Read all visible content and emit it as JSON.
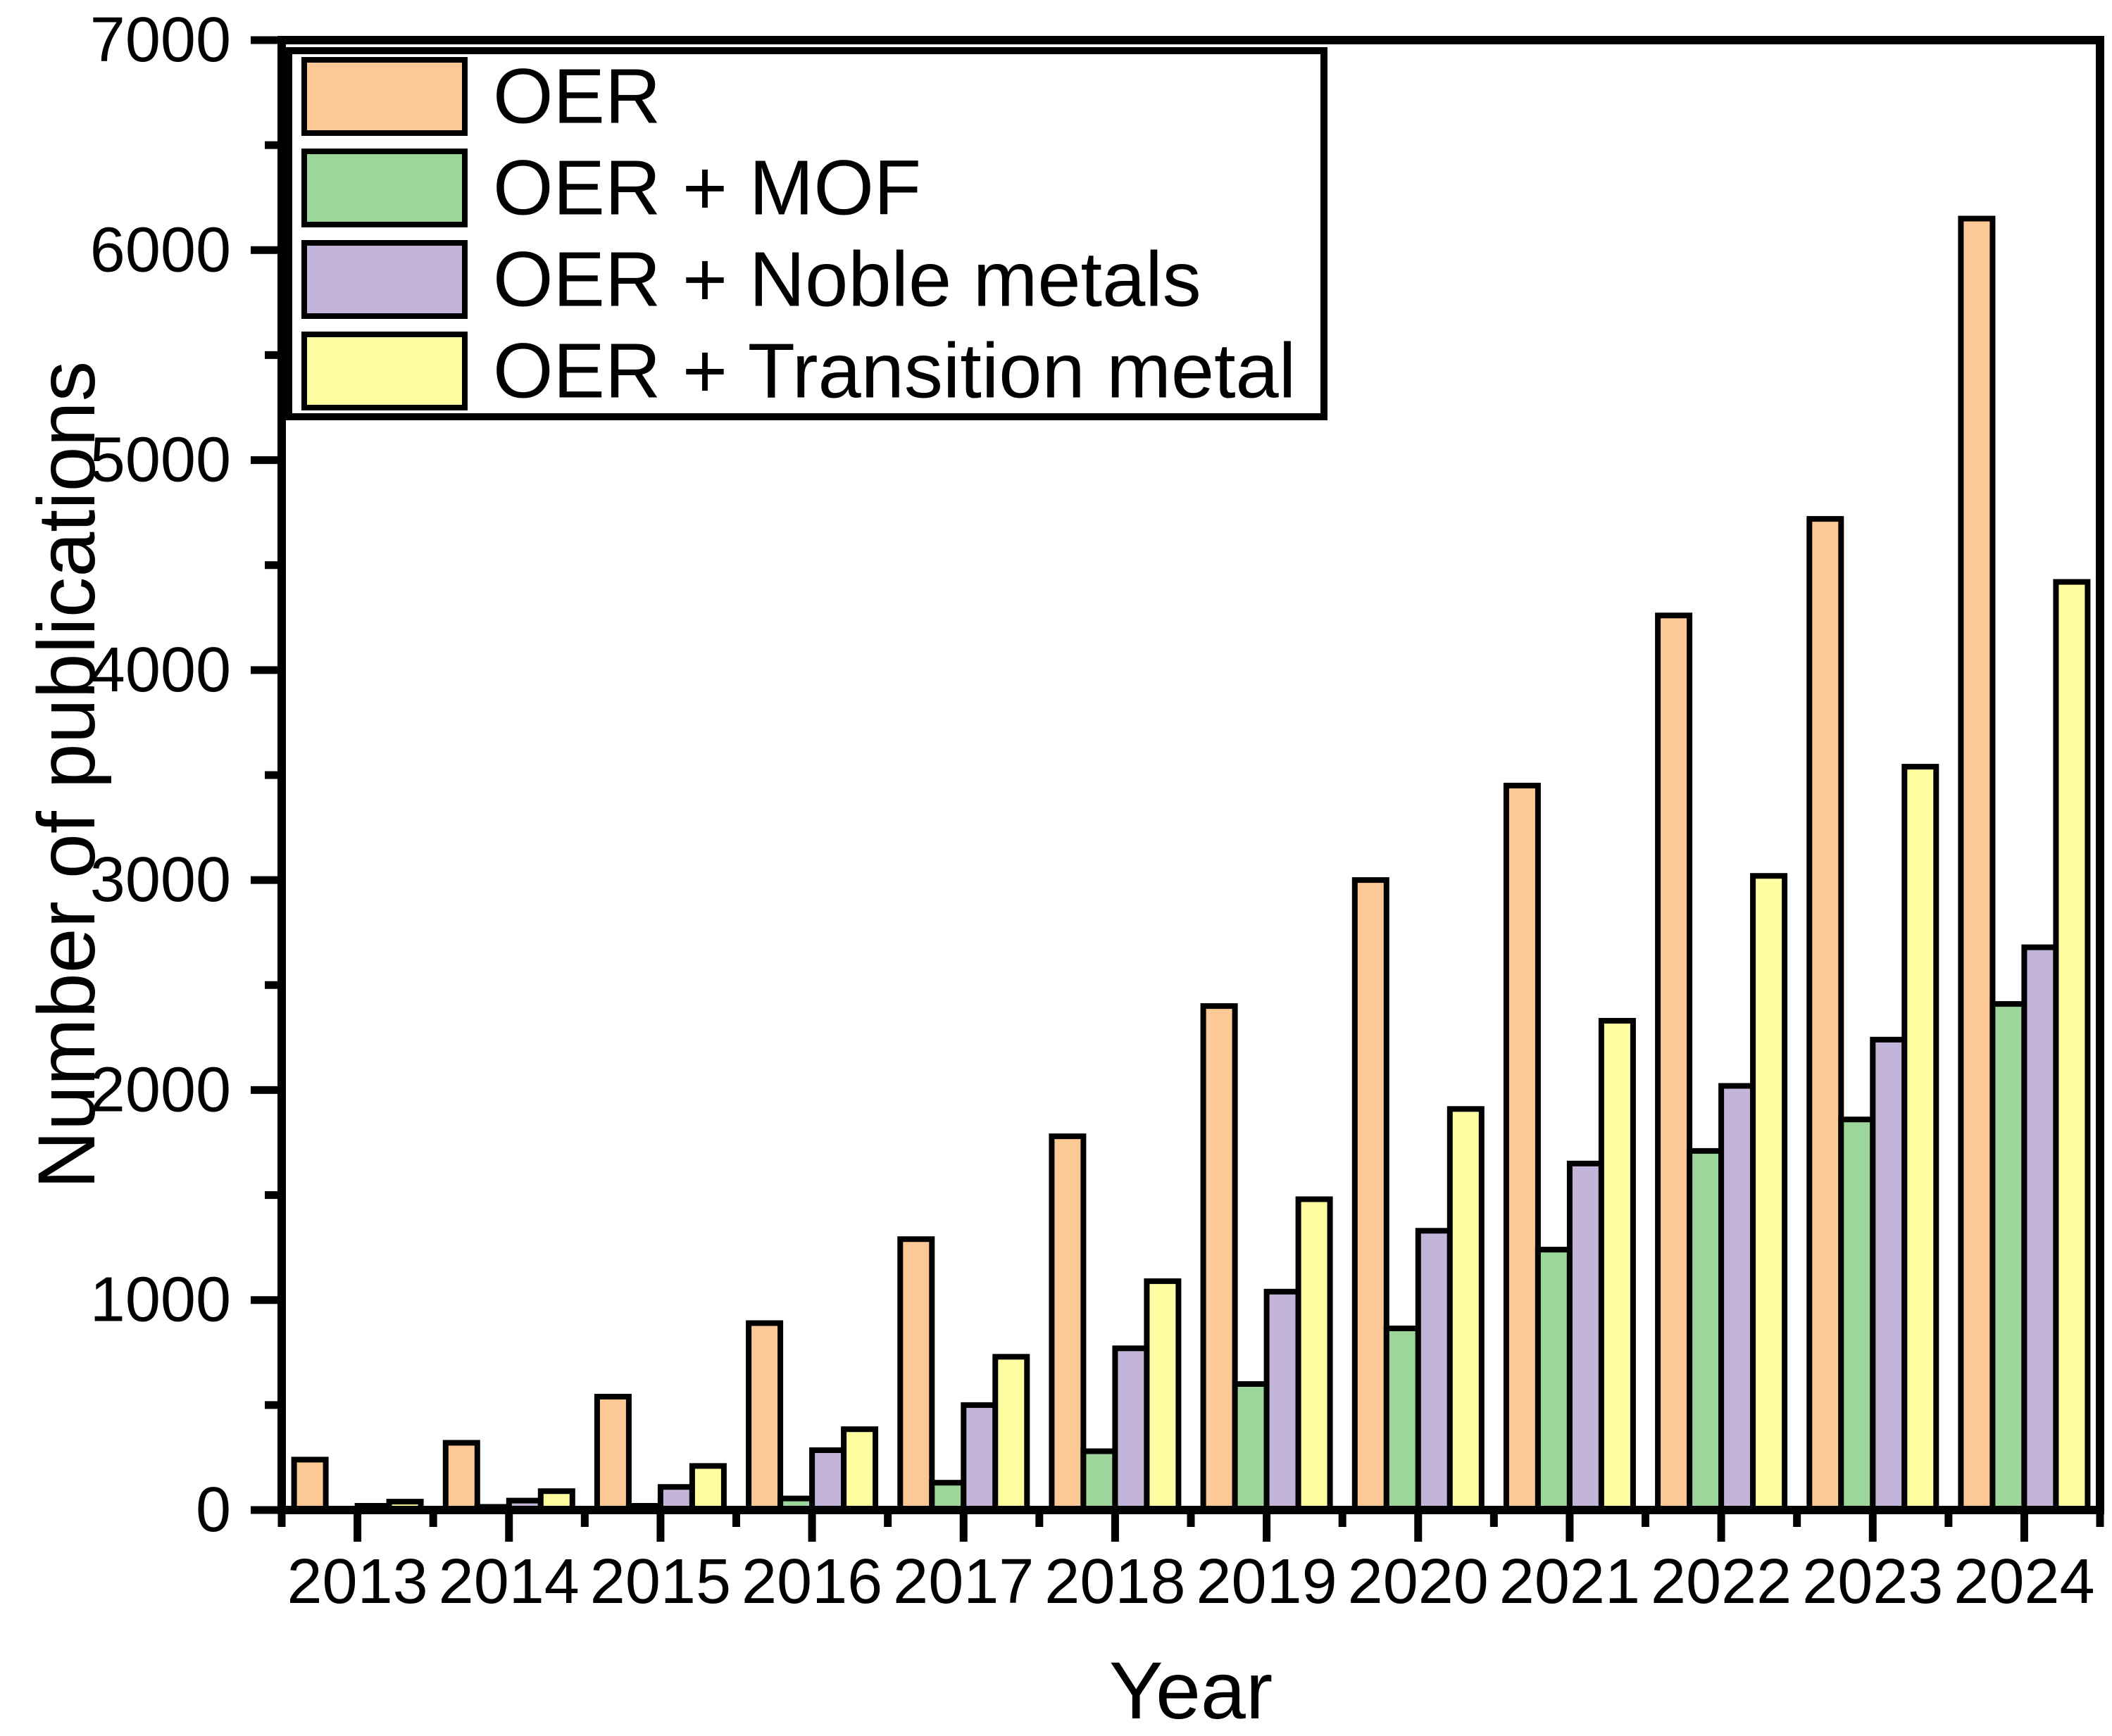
{
  "figure": {
    "background": "#ffffff",
    "frame_color": "#000000"
  },
  "chart_data": {
    "type": "bar",
    "title": "",
    "xlabel": "Year",
    "ylabel": "Number of publications",
    "ylim": [
      0,
      7000
    ],
    "y_major_ticks": [
      0,
      1000,
      2000,
      3000,
      4000,
      5000,
      6000,
      7000
    ],
    "y_minor_tick_step": 500,
    "grid": false,
    "legend_position": "upper-left",
    "bar_edge_color": "#000000",
    "categories": [
      "2013",
      "2014",
      "2015",
      "2016",
      "2017",
      "2018",
      "2019",
      "2020",
      "2021",
      "2022",
      "2023",
      "2024"
    ],
    "series": [
      {
        "name": "OER",
        "color": "#FBC896",
        "values": [
          240,
          320,
          540,
          890,
          1290,
          1780,
          2400,
          3000,
          3450,
          4260,
          4720,
          6150
        ]
      },
      {
        "name": "OER + MOF",
        "color": "#9CD69A",
        "values": [
          5,
          15,
          20,
          55,
          130,
          280,
          600,
          865,
          1240,
          1710,
          1860,
          2410
        ]
      },
      {
        "name": "OER + Noble metals",
        "color": "#C3B4D9",
        "values": [
          20,
          45,
          110,
          285,
          500,
          770,
          1040,
          1330,
          1650,
          2020,
          2240,
          2680
        ]
      },
      {
        "name": "OER + Transition metal",
        "color": "#FEFEA0",
        "values": [
          40,
          90,
          210,
          385,
          730,
          1090,
          1480,
          1910,
          2330,
          3020,
          3540,
          4420
        ]
      }
    ]
  }
}
